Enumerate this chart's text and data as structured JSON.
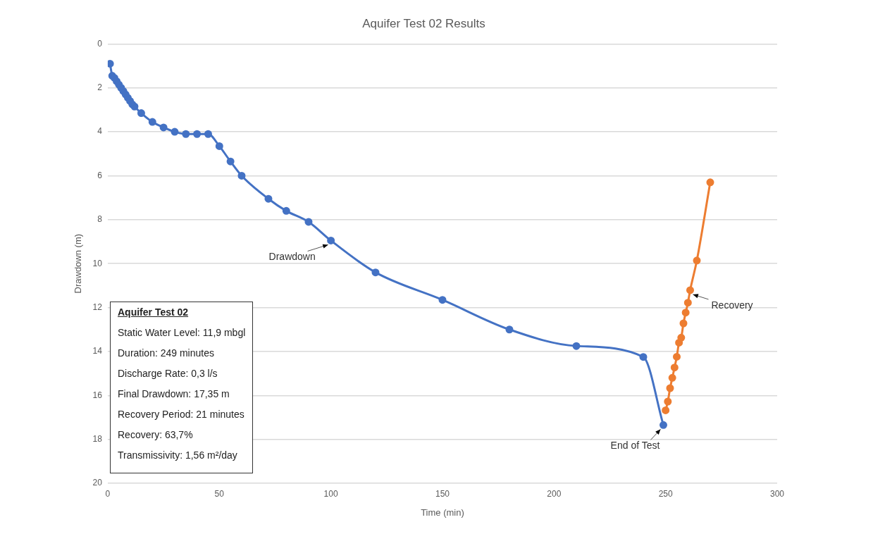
{
  "chart_data": {
    "type": "line",
    "title": "Aquifer Test 02 Results",
    "xlabel": "Time (min)",
    "ylabel": "Drawdown (m)",
    "xlim": [
      0,
      300
    ],
    "xticks": [
      0,
      50,
      100,
      150,
      200,
      250,
      300
    ],
    "ylim": [
      20,
      0
    ],
    "yticks": [
      0,
      2,
      4,
      6,
      8,
      10,
      12,
      14,
      16,
      18,
      20
    ],
    "grid": "y",
    "legend": false,
    "marker": "circle",
    "line_style": "solid",
    "series": [
      {
        "color": "#4472c4",
        "x": [
          1,
          2,
          3,
          4,
          5,
          6,
          7,
          8,
          9,
          10,
          11,
          12,
          15,
          20,
          25,
          30,
          35,
          40,
          45,
          50,
          55,
          60,
          72,
          80,
          90,
          100,
          120,
          150,
          180,
          210,
          240,
          249
        ],
        "values": [
          0.9,
          1.45,
          1.55,
          1.7,
          1.85,
          2.0,
          2.15,
          2.3,
          2.45,
          2.6,
          2.75,
          2.85,
          3.15,
          3.55,
          3.8,
          4.0,
          4.1,
          4.1,
          4.1,
          4.65,
          5.35,
          6.0,
          7.05,
          7.6,
          8.1,
          8.95,
          10.4,
          11.65,
          13.0,
          13.75,
          14.25,
          17.35
        ]
      },
      {
        "color": "#ed7d31",
        "x": [
          250,
          251,
          252,
          253,
          254,
          255,
          256,
          257,
          258,
          259,
          260,
          261,
          264,
          270
        ],
        "values": [
          16.68,
          16.28,
          15.67,
          15.2,
          14.73,
          14.24,
          13.6,
          13.37,
          12.72,
          12.23,
          11.78,
          11.21,
          9.86,
          6.3
        ]
      }
    ],
    "annotations": [
      {
        "text": "Drawdown",
        "x": 100,
        "y": 8.95
      },
      {
        "text": "End of Test",
        "x": 249,
        "y": 17.35
      },
      {
        "text": "Recovery",
        "x": 261,
        "y": 11.21
      },
      "Aquifer Test 02",
      "Static Water Level: 11,9 mbgl",
      "Duration: 249 minutes",
      "Discharge Rate: 0,3 l/s",
      "Final Drawdown: 17,35 m",
      "Recovery Period: 21 minutes",
      "Recovery: 63,7%",
      "Transmissivity: 1,56 m²/day"
    ]
  }
}
